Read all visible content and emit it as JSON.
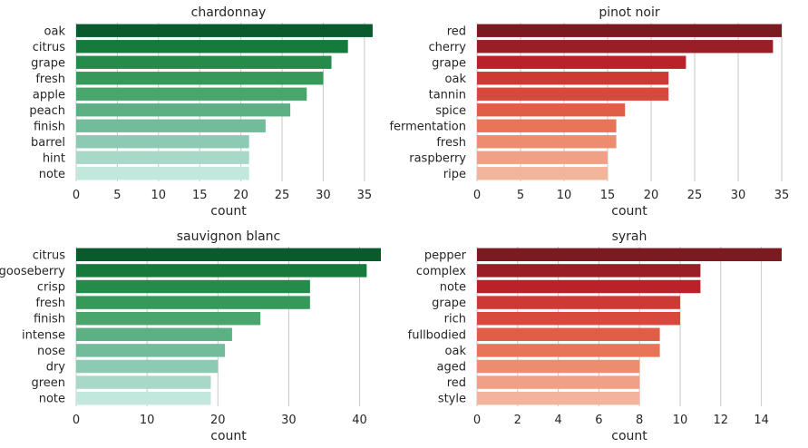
{
  "chart_data": [
    {
      "type": "bar",
      "orientation": "horizontal",
      "title": "chardonnay",
      "xlabel": "count",
      "ylabel": "",
      "categories": [
        "oak",
        "citrus",
        "grape",
        "fresh",
        "apple",
        "peach",
        "finish",
        "barrel",
        "hint",
        "note"
      ],
      "values": [
        36,
        33,
        31,
        30,
        28,
        26,
        23,
        21,
        21,
        21
      ],
      "xlim": [
        0,
        37
      ],
      "xticks": [
        "0",
        "5",
        "10",
        "15",
        "20",
        "25",
        "30",
        "35"
      ],
      "grid": "vertical",
      "colors": [
        "#0b5a2e",
        "#157a3c",
        "#258b4a",
        "#36995a",
        "#4aa56c",
        "#5cb184",
        "#72bc9c",
        "#8ccab3",
        "#a8d9c8",
        "#c2e7dc"
      ]
    },
    {
      "type": "bar",
      "orientation": "horizontal",
      "title": "pinot noir",
      "xlabel": "count",
      "ylabel": "",
      "categories": [
        "red",
        "cherry",
        "grape",
        "oak",
        "tannin",
        "spice",
        "fermentation",
        "fresh",
        "raspberry",
        "ripe"
      ],
      "values": [
        35,
        34,
        24,
        22,
        22,
        17,
        16,
        16,
        15,
        15
      ],
      "xlim": [
        0,
        35
      ],
      "xticks": [
        "0",
        "5",
        "10",
        "15",
        "20",
        "25",
        "30",
        "35"
      ],
      "grid": "vertical",
      "colors": [
        "#7c1a22",
        "#9a1e26",
        "#b82228",
        "#cc3a33",
        "#d9483c",
        "#e05e47",
        "#e87558",
        "#ee8c6f",
        "#f0a085",
        "#f3b49c"
      ]
    },
    {
      "type": "bar",
      "orientation": "horizontal",
      "title": "sauvignon blanc",
      "xlabel": "count",
      "ylabel": "",
      "categories": [
        "citrus",
        "gooseberry",
        "crisp",
        "fresh",
        "finish",
        "intense",
        "nose",
        "dry",
        "green",
        "note"
      ],
      "values": [
        43,
        41,
        33,
        33,
        26,
        22,
        21,
        20,
        19,
        19
      ],
      "xlim": [
        0,
        43
      ],
      "xticks": [
        "0",
        "10",
        "20",
        "30",
        "40"
      ],
      "grid": "vertical",
      "colors": [
        "#0b5a2e",
        "#157a3c",
        "#258b4a",
        "#36995a",
        "#4aa56c",
        "#5cb184",
        "#72bc9c",
        "#8ccab3",
        "#a8d9c8",
        "#c2e7dc"
      ]
    },
    {
      "type": "bar",
      "orientation": "horizontal",
      "title": "syrah",
      "xlabel": "count",
      "ylabel": "",
      "categories": [
        "pepper",
        "complex",
        "note",
        "grape",
        "rich",
        "fullbodied",
        "oak",
        "aged",
        "red",
        "style"
      ],
      "values": [
        15,
        11,
        11,
        10,
        10,
        9,
        9,
        8,
        8,
        8
      ],
      "xlim": [
        0,
        15
      ],
      "xticks": [
        "0",
        "2",
        "4",
        "6",
        "8",
        "10",
        "12",
        "14"
      ],
      "grid": "vertical",
      "colors": [
        "#7c1a22",
        "#9a1e26",
        "#b82228",
        "#cc3a33",
        "#d9483c",
        "#e05e47",
        "#e87558",
        "#ee8c6f",
        "#f0a085",
        "#f3b49c"
      ]
    }
  ]
}
